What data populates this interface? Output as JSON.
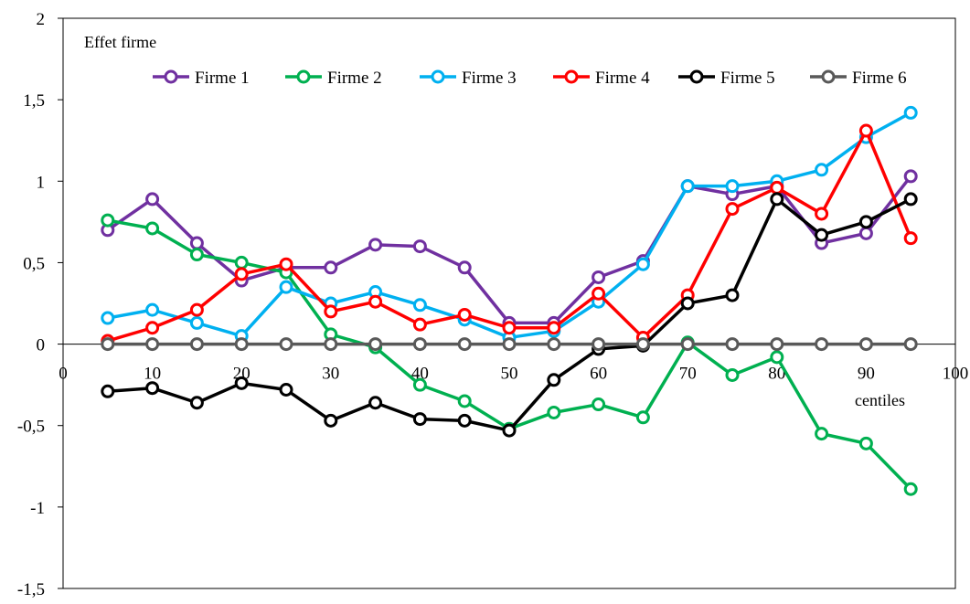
{
  "chart_data": {
    "type": "line",
    "title": "",
    "ylabel": "Effet firme",
    "xlabel": "centiles",
    "xlim": [
      0,
      100
    ],
    "ylim": [
      -1.5,
      2
    ],
    "x_ticks": [
      0,
      10,
      20,
      30,
      40,
      50,
      60,
      70,
      80,
      90,
      100
    ],
    "x_tick_labels": [
      "0",
      "10",
      "20",
      "30",
      "40",
      "50",
      "60",
      "70",
      "80",
      "90",
      "100"
    ],
    "y_ticks": [
      -1.5,
      -1,
      -0.5,
      0,
      0.5,
      1,
      1.5,
      2
    ],
    "y_tick_labels": [
      "-1,5",
      "-1",
      "-0,5",
      "0",
      "0,5",
      "1",
      "1,5",
      "2"
    ],
    "grid": false,
    "legend_position": "top-right",
    "x": [
      5,
      10,
      15,
      20,
      25,
      30,
      35,
      40,
      45,
      50,
      55,
      60,
      65,
      70,
      75,
      80,
      85,
      90,
      95
    ],
    "series": [
      {
        "name": "Firme 1",
        "color": "#7030a0",
        "values": [
          0.7,
          0.89,
          0.62,
          0.39,
          0.47,
          0.47,
          0.61,
          0.6,
          0.47,
          0.13,
          0.13,
          0.41,
          0.51,
          0.97,
          0.92,
          0.97,
          0.62,
          0.68,
          1.03
        ]
      },
      {
        "name": "Firme 2",
        "color": "#00b050",
        "values": [
          0.76,
          0.71,
          0.55,
          0.5,
          0.44,
          0.06,
          -0.02,
          -0.25,
          -0.35,
          -0.52,
          -0.42,
          -0.37,
          -0.45,
          0.01,
          -0.19,
          -0.08,
          -0.55,
          -0.61,
          -0.89
        ]
      },
      {
        "name": "Firme 3",
        "color": "#00b0f0",
        "values": [
          0.16,
          0.21,
          0.13,
          0.05,
          0.35,
          0.25,
          0.32,
          0.24,
          0.15,
          0.04,
          0.08,
          0.26,
          0.49,
          0.97,
          0.97,
          1.0,
          1.07,
          1.27,
          1.42
        ]
      },
      {
        "name": "Firme 4",
        "color": "#ff0000",
        "values": [
          0.02,
          0.1,
          0.21,
          0.43,
          0.49,
          0.2,
          0.26,
          0.12,
          0.18,
          0.1,
          0.1,
          0.31,
          0.04,
          0.3,
          0.83,
          0.96,
          0.8,
          1.31,
          0.65
        ]
      },
      {
        "name": "Firme 5",
        "color": "#000000",
        "values": [
          -0.29,
          -0.27,
          -0.36,
          -0.24,
          -0.28,
          -0.47,
          -0.36,
          -0.46,
          -0.47,
          -0.53,
          -0.22,
          -0.03,
          -0.01,
          0.25,
          0.3,
          0.89,
          0.67,
          0.75,
          0.89
        ]
      },
      {
        "name": "Firme 6",
        "color": "#595959",
        "values": [
          0,
          0,
          0,
          0,
          0,
          0,
          0,
          0,
          0,
          0,
          0,
          0,
          0,
          0,
          0,
          0,
          0,
          0,
          0
        ]
      }
    ]
  }
}
